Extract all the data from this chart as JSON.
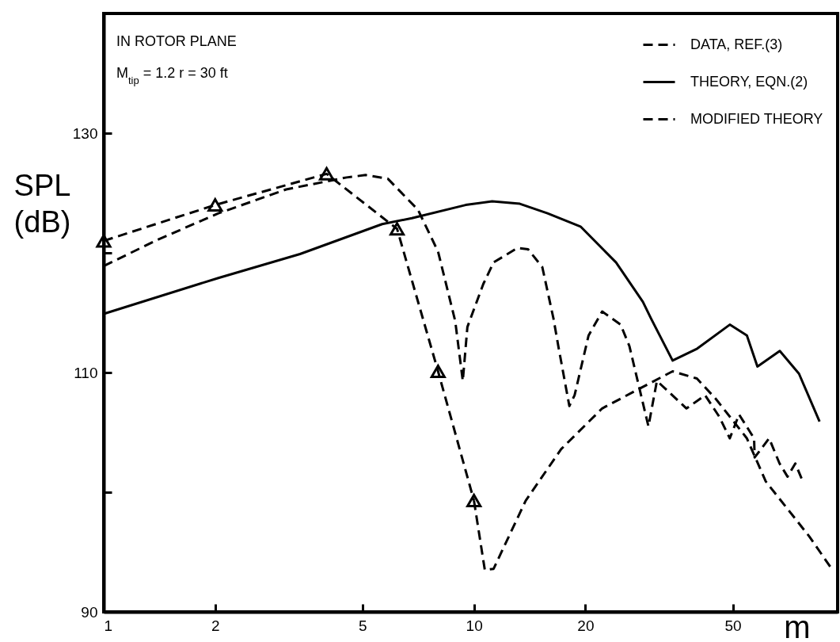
{
  "chart_data": {
    "type": "line",
    "xlabel": "m",
    "ylabel": "SPL (dB)",
    "log": "x",
    "xlim": [
      1,
      96
    ],
    "ylim": [
      90,
      140
    ],
    "xticks": [
      1,
      2,
      5,
      10,
      20,
      50
    ],
    "yticks": [
      90,
      {
        "value": 100,
        "label": null
      },
      110,
      {
        "value": 120,
        "label": null
      },
      130
    ],
    "grid": false,
    "legend": "top right",
    "annotations": [
      "IN ROTOR PLANE",
      "M$_{tip}$ = 1.2   r = 30 ft"
    ],
    "series": [
      {
        "name": "DATA, REF.(3)",
        "color": "#000000",
        "line_style": "dashed",
        "marker": "triangle",
        "x": [
          1,
          2,
          4,
          6.2,
          8,
          10
        ],
        "values": [
          121,
          124,
          126.6,
          122,
          110.1,
          99.3
        ]
      },
      {
        "name": "THEORY, EQN.(2)",
        "color": "#000000",
        "line_style": "solid",
        "x": [
          1,
          2.04,
          3.39,
          5.65,
          6.8,
          9.5,
          11.2,
          13.3,
          15.8,
          19.4,
          24.2,
          28.6,
          30.1,
          34.4,
          40.1,
          49.1,
          54.6,
          58.3,
          67,
          75.5,
          85.8
        ],
        "values": [
          114.9,
          117.9,
          119.9,
          122.4,
          122.9,
          124,
          124.3,
          124.1,
          123.3,
          122.2,
          119.2,
          115.9,
          114.5,
          111,
          112,
          114,
          113.1,
          110.5,
          111.8,
          109.9,
          105.9
        ]
      },
      {
        "name": "MODIFIED THEORY",
        "color": "#000000",
        "line_style": "dashed",
        "x": [
          1,
          1.4,
          2.04,
          3.11,
          4.53,
          5.1,
          5.85,
          7.06,
          8.0,
          8.9,
          9.33,
          9.6,
          10.6,
          11.3,
          13.1,
          14.0,
          15.3,
          16.4,
          16.9,
          18.1,
          18.7,
          20.4,
          22.2,
          24.9,
          26.3,
          29.6,
          31.2,
          37.5,
          42.1,
          46.0,
          49.1,
          52.0,
          57.1,
          57.3,
          62.7,
          66.9,
          70.3,
          73.8,
          77.3
        ],
        "values": [
          118.9,
          121.1,
          123.3,
          125.3,
          126.3,
          126.5,
          126.2,
          123.6,
          120.1,
          114.3,
          109.3,
          113.8,
          117.4,
          119.2,
          120.4,
          120.3,
          118.8,
          114.5,
          112.2,
          107.2,
          108.1,
          113.1,
          115.1,
          114,
          112.2,
          105.5,
          109.3,
          107,
          108.1,
          106.3,
          104.5,
          106.5,
          104.5,
          102.9,
          104.5,
          102.4,
          101.3,
          102.4,
          100.9
        ]
      },
      {
        "color": "#000000",
        "line_style": "dashed",
        "x": [
          10,
          10.7,
          11.3,
          13.8,
          17.2,
          22.2,
          28.6,
          34.4,
          40,
          45,
          54.6,
          61.4,
          80.5,
          93
        ],
        "values": [
          99.3,
          93.5,
          93.6,
          99.3,
          103.6,
          107,
          108.8,
          110.1,
          109.5,
          107.8,
          104.5,
          100.9,
          96.3,
          93.5
        ]
      }
    ]
  }
}
